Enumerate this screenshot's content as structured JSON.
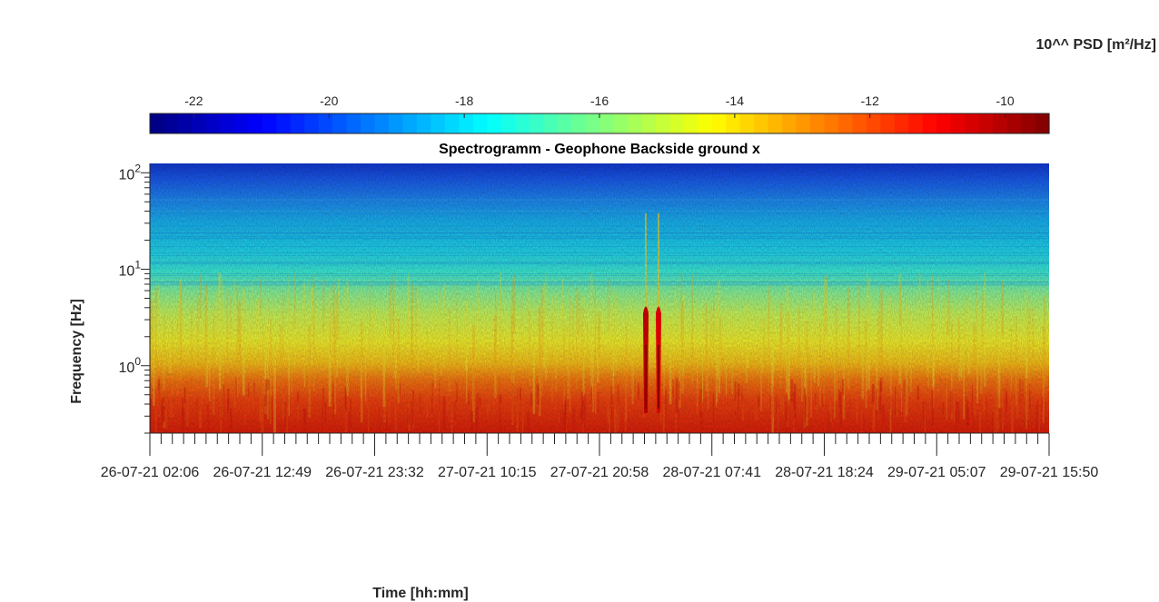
{
  "chart_data": {
    "type": "heatmap",
    "title": "Spectrogramm - Geophone Backside ground x",
    "xlabel": "Time [hh:mm]",
    "ylabel": "Frequency [Hz]",
    "yscale": "log",
    "ylim": [
      0.2,
      125
    ],
    "y_ticks": [
      {
        "value": 1,
        "base": "10",
        "exp": "0"
      },
      {
        "value": 10,
        "base": "10",
        "exp": "1"
      },
      {
        "value": 100,
        "base": "10",
        "exp": "2"
      }
    ],
    "x_ticks": [
      {
        "label": "26-07-21  02:06"
      },
      {
        "label": "26-07-21  12:49"
      },
      {
        "label": "26-07-21  23:32"
      },
      {
        "label": "27-07-21  10:15"
      },
      {
        "label": "27-07-21  20:58"
      },
      {
        "label": "28-07-21  07:41"
      },
      {
        "label": "28-07-21  18:24"
      },
      {
        "label": "29-07-21  05:07"
      },
      {
        "label": "29-07-21  15:50"
      }
    ],
    "colorbar": {
      "label": "10^^ PSD [m²/Hz]",
      "colormap": "jet",
      "range": [
        -22.65,
        -9.35
      ],
      "ticks": [
        -22,
        -20,
        -18,
        -16,
        -14,
        -12,
        -10
      ],
      "location": "top"
    },
    "events": [
      {
        "time": "27-07-21 ~22:40",
        "level": -10.5
      },
      {
        "time": "27-07-21 ~23:20",
        "level": -11.0
      }
    ]
  }
}
